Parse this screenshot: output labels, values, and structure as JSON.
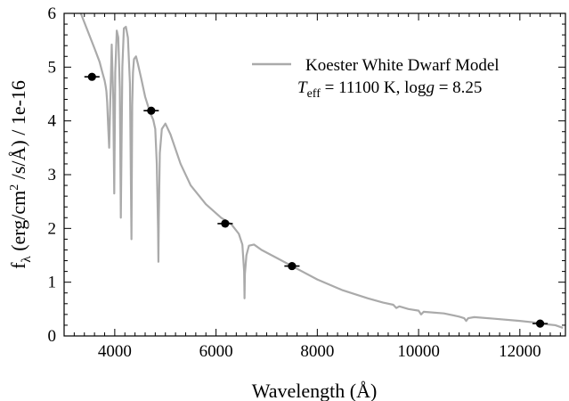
{
  "chart_data": {
    "type": "line",
    "xlabel": "Wavelength (Å)",
    "ylabel": "fλ (erg/cm² /s/Å) / 1e-16",
    "ylabel_parts": {
      "f": "f",
      "lambda": "λ",
      "unit_a": " (erg/cm",
      "two": "2",
      "unit_b": " /s/Å) / 1e-16"
    },
    "xlim": [
      3000,
      12900
    ],
    "ylim": [
      0,
      6
    ],
    "x_ticks": [
      4000,
      6000,
      8000,
      10000,
      12000
    ],
    "x_tick_labels": [
      "4000",
      "6000",
      "8000",
      "10000",
      "12000"
    ],
    "y_ticks": [
      0,
      1,
      2,
      3,
      4,
      5,
      6
    ],
    "y_tick_labels": [
      "0",
      "1",
      "2",
      "3",
      "4",
      "5",
      "6"
    ],
    "grid": false,
    "legend_position": "top-right",
    "colors": {
      "model": "#aaaaaa",
      "points": "#000000"
    },
    "legend": {
      "label": "Koester White Dwarf Model",
      "teff_T": "T",
      "teff_sub": "eff",
      "teff_text": " = 11100 K, log",
      "logg_g": "g",
      "logg_val": " = 8.25"
    },
    "series": [
      {
        "name": "Koester White Dwarf Model",
        "style": "line",
        "x": [
          3330,
          3600,
          3700,
          3750,
          3800,
          3820,
          3835,
          3850,
          3870,
          3890,
          3910,
          3940,
          3970,
          3990,
          4010,
          4040,
          4070,
          4100,
          4120,
          4150,
          4180,
          4220,
          4260,
          4300,
          4330,
          4345,
          4360,
          4380,
          4420,
          4460,
          4520,
          4600,
          4700,
          4760,
          4800,
          4830,
          4855,
          4862,
          4870,
          4890,
          4930,
          5000,
          5100,
          5300,
          5500,
          5800,
          6100,
          6300,
          6450,
          6520,
          6555,
          6563,
          6570,
          6600,
          6650,
          6750,
          6900,
          7200,
          7500,
          8000,
          8500,
          9000,
          9300,
          9500,
          9560,
          9620,
          9800,
          10000,
          10050,
          10100,
          10500,
          10800,
          10900,
          10940,
          10980,
          11100,
          11500,
          12000,
          12300,
          12500,
          12700,
          12850
        ],
        "y": [
          6.0,
          5.35,
          5.1,
          4.92,
          4.75,
          4.65,
          4.55,
          4.35,
          3.9,
          3.5,
          4.3,
          5.42,
          4.4,
          2.65,
          4.9,
          5.68,
          5.55,
          4.6,
          2.2,
          5.0,
          5.72,
          5.75,
          5.55,
          4.7,
          1.8,
          4.3,
          4.9,
          5.15,
          5.2,
          5.05,
          4.8,
          4.45,
          4.15,
          4.02,
          3.85,
          3.2,
          2.0,
          1.38,
          2.2,
          3.4,
          3.85,
          3.95,
          3.75,
          3.2,
          2.8,
          2.45,
          2.2,
          2.08,
          1.9,
          1.7,
          1.2,
          0.7,
          1.15,
          1.5,
          1.68,
          1.7,
          1.6,
          1.45,
          1.3,
          1.05,
          0.85,
          0.7,
          0.62,
          0.58,
          0.52,
          0.55,
          0.5,
          0.47,
          0.4,
          0.45,
          0.42,
          0.36,
          0.33,
          0.28,
          0.33,
          0.35,
          0.32,
          0.28,
          0.25,
          0.22,
          0.2,
          0.15
        ]
      },
      {
        "name": "",
        "style": "points",
        "x": [
          3550,
          4720,
          6180,
          7500,
          12400
        ],
        "y": [
          4.82,
          4.19,
          2.09,
          1.3,
          0.23
        ],
        "xerr": [
          150,
          150,
          150,
          150,
          150
        ],
        "yerr": [
          0.05,
          0.04,
          0.03,
          0.03,
          0.02
        ]
      }
    ]
  }
}
